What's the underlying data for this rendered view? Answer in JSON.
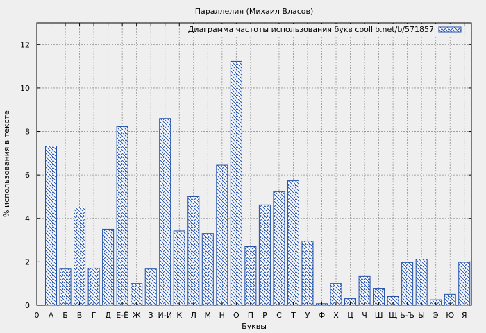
{
  "chart_data": {
    "type": "bar",
    "title": "Параллелия (Михаил Власов)",
    "xlabel": "Буквы",
    "ylabel": "% использования в тексте",
    "legend": "Диаграмма частоты использования букв coollib.net/b/571857",
    "legend_position": "top-right",
    "grid": true,
    "ylim": [
      0,
      13
    ],
    "yticks": [
      0,
      2,
      4,
      6,
      8,
      10,
      12
    ],
    "x_start_label": "0",
    "categories": [
      "А",
      "Б",
      "В",
      "Г",
      "Д",
      "Е-Ё",
      "Ж",
      "З",
      "И-Й",
      "К",
      "Л",
      "М",
      "Н",
      "О",
      "П",
      "Р",
      "С",
      "Т",
      "У",
      "Ф",
      "Х",
      "Ц",
      "Ч",
      "Ш",
      "Щ",
      "Ь-Ъ",
      "Ы",
      "Э",
      "Ю",
      "Я"
    ],
    "values": [
      7.33,
      1.67,
      4.52,
      1.71,
      3.5,
      8.23,
      1.0,
      1.67,
      8.6,
      3.42,
      5.0,
      3.3,
      6.45,
      11.23,
      2.7,
      4.62,
      5.23,
      5.73,
      2.95,
      0.07,
      1.0,
      0.3,
      1.33,
      0.78,
      0.4,
      1.97,
      2.12,
      0.25,
      0.5,
      1.98
    ],
    "colors": {
      "bar_stroke": "#1f4fa8",
      "grid": "#909090",
      "background": "#efefef",
      "plot_bg": "#efefef"
    }
  }
}
